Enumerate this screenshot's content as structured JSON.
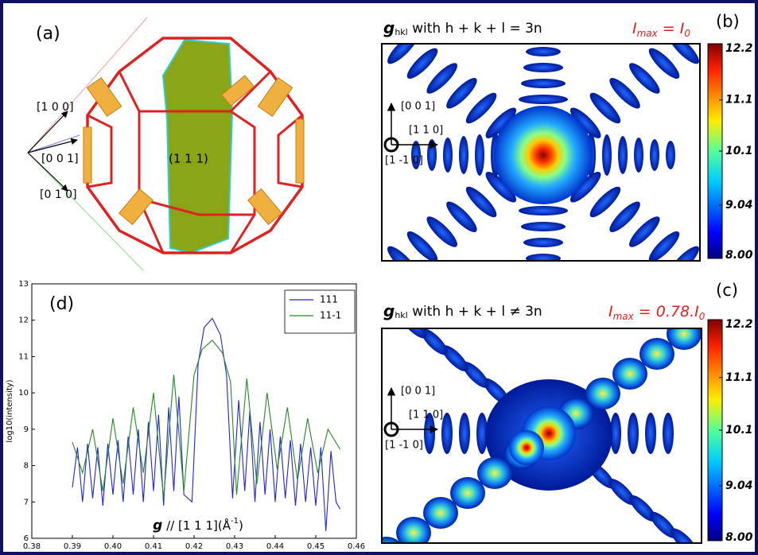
{
  "panel_a": {
    "label": "(a)",
    "directions": [
      "[1 0 0]",
      "[0 0 1]",
      "[0 1 0]"
    ],
    "plane": "(1 1 1)"
  },
  "panel_b": {
    "label": "(b)",
    "title": {
      "symbol": "g",
      "subscript": "hkl",
      "text": " with h + k + l = 3n"
    },
    "intensity": {
      "symbol": "I",
      "subscript": "max",
      "relation": " =  ",
      "ref": "I",
      "ref_subscript": "0"
    },
    "axes": [
      "[0 0 1]",
      "[1 1 0]",
      "[1 -1 0]"
    ],
    "colorbar": {
      "lim": [
        8,
        12.2
      ],
      "ticks": [
        {
          "value": 8,
          "label": "8.00"
        },
        9.04,
        10.1,
        11.1,
        12.2
      ]
    }
  },
  "panel_c": {
    "label": "(c)",
    "title": {
      "symbol": "g",
      "subscript": "hkl",
      "text": " with h + k + l ≠ 3n"
    },
    "intensity": {
      "symbol": "I",
      "subscript": "max",
      "relation": " = 0.78.",
      "ref": "I",
      "ref_subscript": "0"
    },
    "axes": [
      "[0 0 1]",
      "[1 1 0]",
      "[1 -1 0]"
    ],
    "colorbar": {
      "lim": [
        8,
        12.2
      ],
      "ticks": [
        {
          "value": 8,
          "label": "8.00"
        },
        9.04,
        10.1,
        11.1,
        12.2
      ]
    }
  },
  "chart_data": {
    "type": "line",
    "label": "(d)",
    "xlabel": {
      "symbol": "g",
      "text": " // [1 1 1](Å",
      "superscript": "-1",
      "close": ")"
    },
    "ylabel": "log10(intensity)",
    "xlim": [
      0.38,
      0.46
    ],
    "xticks": [
      0.38,
      0.39,
      {
        "value": 0.4,
        "label": "0.40"
      },
      0.41,
      0.42,
      0.43,
      0.44,
      0.45,
      0.46
    ],
    "ylim": [
      6,
      13
    ],
    "yticks": [
      6,
      7,
      8,
      9,
      10,
      11,
      12,
      13
    ],
    "legend": "upper right",
    "series": [
      {
        "name": "111",
        "color": "#2222dd",
        "x": [
          0.39,
          0.39125,
          0.3925,
          0.39375,
          0.395,
          0.39625,
          0.3975,
          0.39875,
          0.4,
          0.40125,
          0.4025,
          0.40375,
          0.405,
          0.40625,
          0.4075,
          0.40875,
          0.41,
          0.41125,
          0.4125,
          0.41375,
          0.415,
          0.41625,
          0.4175,
          0.4195,
          0.421,
          0.4225,
          0.4245,
          0.4265,
          0.428,
          0.4295,
          0.431,
          0.4325,
          0.43375,
          0.435,
          0.43625,
          0.4375,
          0.43875,
          0.44,
          0.44125,
          0.4425,
          0.44375,
          0.445,
          0.44625,
          0.4475,
          0.44875,
          0.45,
          0.45125,
          0.4525,
          0.45375,
          0.455,
          0.456
        ],
        "values": [
          7.4,
          8.5,
          7.0,
          8.6,
          7.1,
          8.5,
          6.9,
          8.6,
          7.2,
          8.7,
          7.0,
          8.8,
          7.2,
          9.0,
          7.0,
          9.2,
          7.3,
          9.4,
          6.9,
          9.6,
          7.3,
          9.9,
          7.2,
          7.0,
          10.8,
          11.8,
          12.05,
          11.6,
          10.5,
          7.1,
          9.8,
          7.3,
          9.5,
          7.0,
          9.2,
          7.2,
          9.0,
          7.0,
          8.8,
          7.1,
          8.7,
          6.9,
          8.6,
          7.0,
          8.5,
          6.9,
          8.5,
          6.2,
          8.4,
          7.0,
          6.8
        ]
      },
      {
        "name": "11-1",
        "color": "#228822",
        "x": [
          0.39,
          0.3925,
          0.395,
          0.3975,
          0.4,
          0.4025,
          0.405,
          0.4075,
          0.41,
          0.4125,
          0.415,
          0.4175,
          0.42,
          0.422,
          0.4245,
          0.427,
          0.429,
          0.4305,
          0.433,
          0.4355,
          0.438,
          0.4405,
          0.443,
          0.4455,
          0.448,
          0.4505,
          0.453,
          0.456
        ],
        "values": [
          8.65,
          7.8,
          9.0,
          7.3,
          9.3,
          7.5,
          9.6,
          7.8,
          10.0,
          7.1,
          10.5,
          7.3,
          10.5,
          11.2,
          11.45,
          11.1,
          10.3,
          7.2,
          10.4,
          7.5,
          10.0,
          7.9,
          9.6,
          7.6,
          9.3,
          7.8,
          9.0,
          8.45
        ]
      }
    ]
  }
}
